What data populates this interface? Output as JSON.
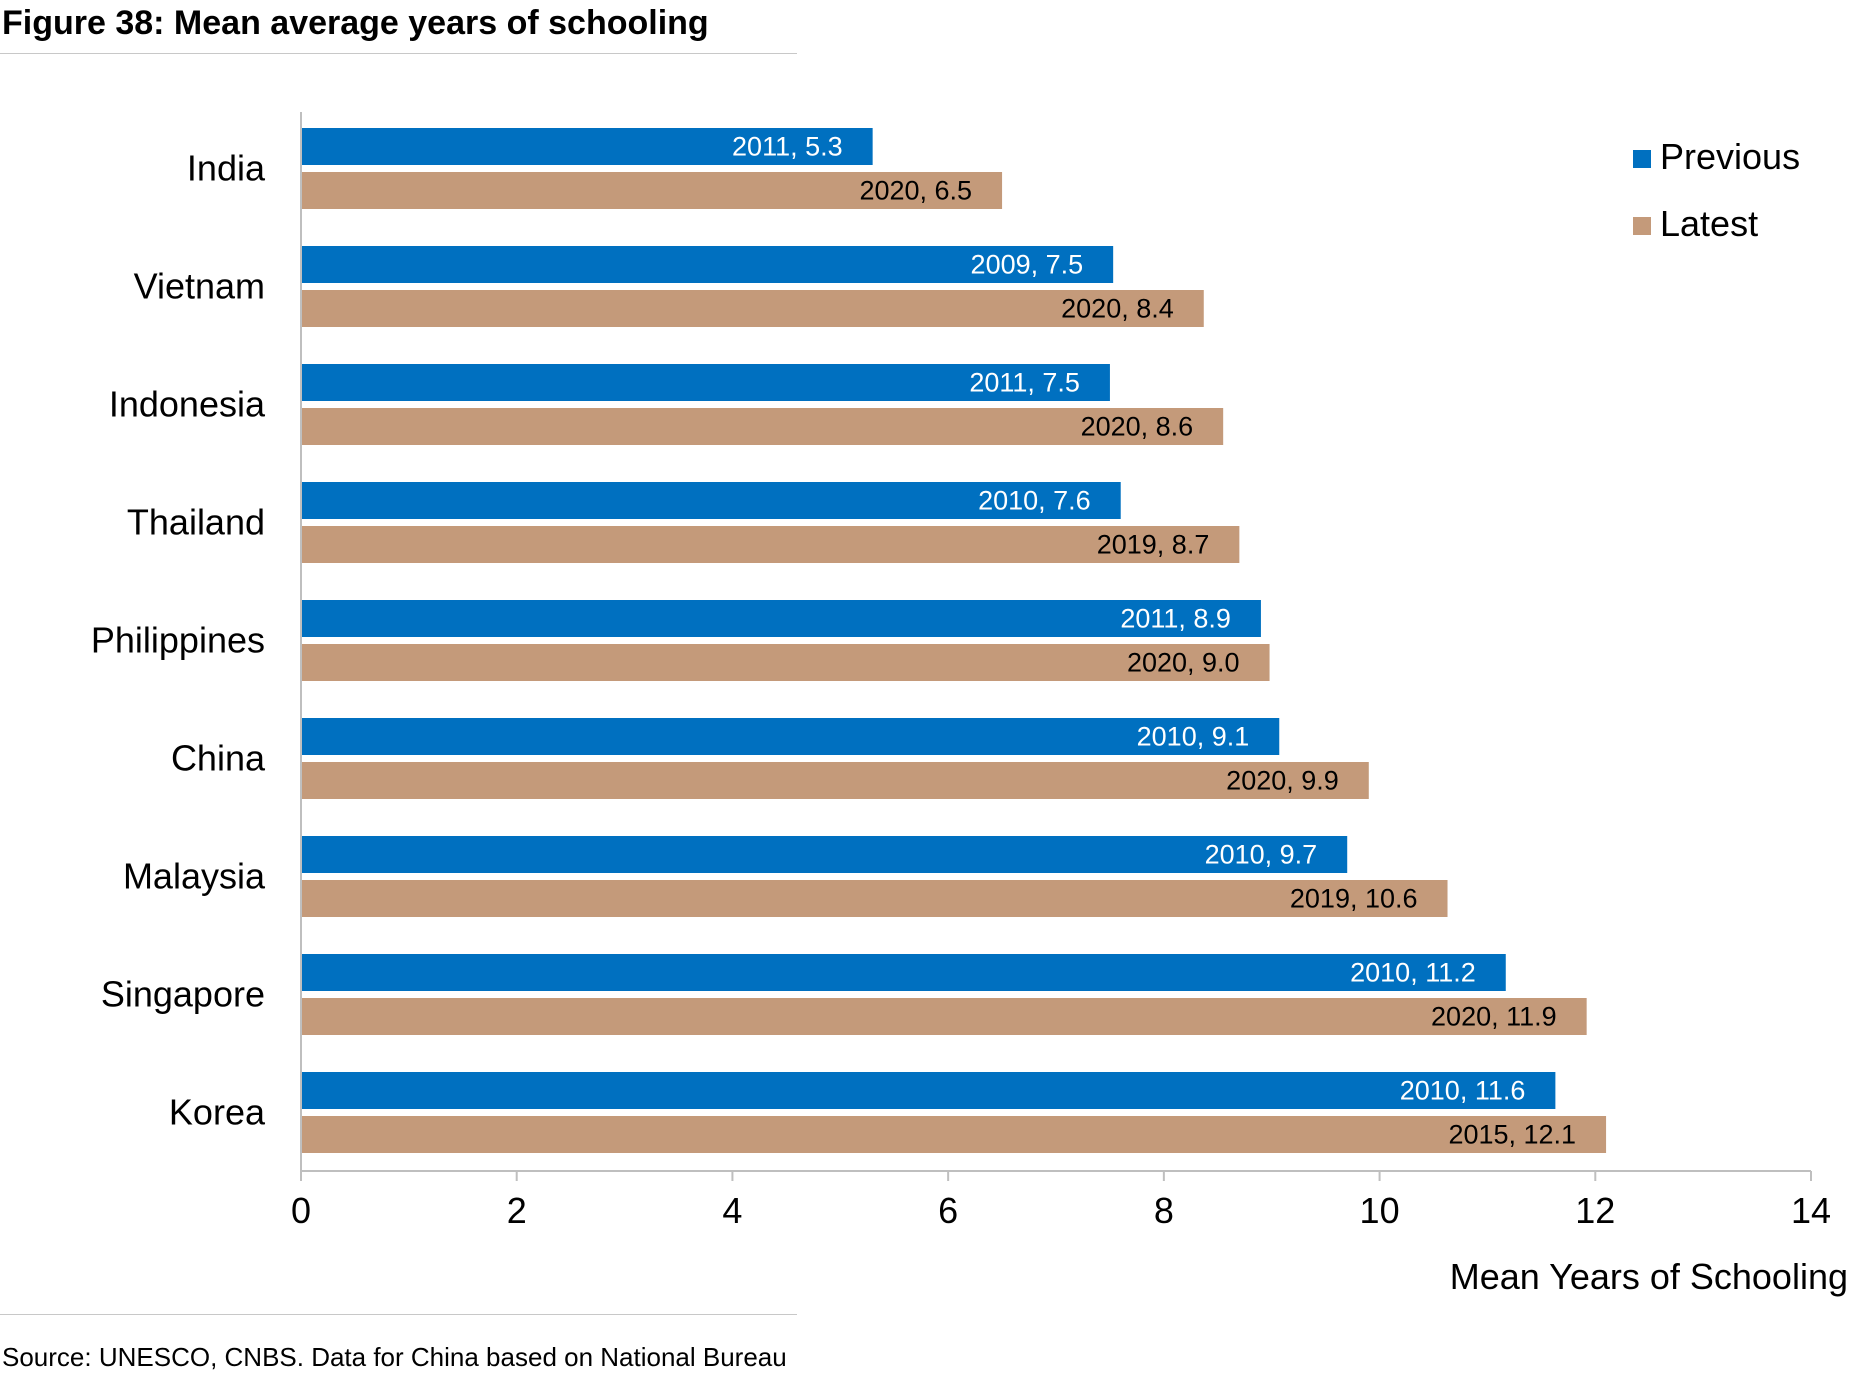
{
  "figure_title": "Figure 38: Mean average years of schooling",
  "source": "Source: UNESCO, CNBS. Data for China based on National Bureau",
  "colors": {
    "previous": "#0070C0",
    "latest": "#C49A7A",
    "axis": "#bfbfbf"
  },
  "chart_data": {
    "type": "bar",
    "orientation": "horizontal",
    "title": "",
    "xlabel": "Mean Years of Schooling",
    "ylabel": "",
    "xlim": [
      0,
      14
    ],
    "xticks": [
      0,
      2,
      4,
      6,
      8,
      10,
      12,
      14
    ],
    "grid": false,
    "legend_position": "top-right",
    "categories": [
      "India",
      "Vietnam",
      "Indonesia",
      "Thailand",
      "Philippines",
      "China",
      "Malaysia",
      "Singapore",
      "Korea"
    ],
    "series": [
      {
        "name": "Previous",
        "values": [
          5.3,
          7.53,
          7.5,
          7.6,
          8.9,
          9.07,
          9.7,
          11.17,
          11.63
        ],
        "labels": [
          "2011, 5.3",
          "2009, 7.5",
          "2011, 7.5",
          "2010, 7.6",
          "2011, 8.9",
          "2010, 9.1",
          "2010, 9.7",
          "2010, 11.2",
          "2010, 11.6"
        ]
      },
      {
        "name": "Latest",
        "values": [
          6.5,
          8.37,
          8.55,
          8.7,
          8.98,
          9.9,
          10.63,
          11.92,
          12.1
        ],
        "labels": [
          "2020, 6.5",
          "2020, 8.4",
          "2020, 8.6",
          "2019, 8.7",
          "2020, 9.0",
          "2020, 9.9",
          "2019, 10.6",
          "2020, 11.9",
          "2015, 12.1"
        ]
      }
    ]
  }
}
